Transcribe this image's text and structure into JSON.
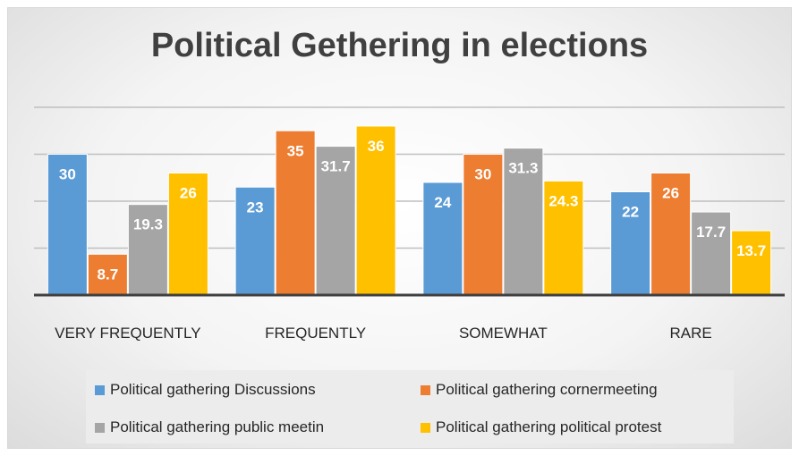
{
  "chart_data": {
    "type": "bar",
    "title": "Political Gethering in elections",
    "categories": [
      "VERY FREQUENTLY",
      "FREQUENTLY",
      "SOMEWHAT",
      "RARE"
    ],
    "series": [
      {
        "name": "Political gathering Discussions",
        "color": "#5b9bd5",
        "values": [
          30,
          23,
          24,
          22
        ],
        "labels": [
          "30",
          "23",
          "24",
          "22"
        ]
      },
      {
        "name": "Political gathering cornermeeting",
        "color": "#ed7d31",
        "values": [
          8.7,
          35,
          30,
          26
        ],
        "labels": [
          "8.7",
          "35",
          "30",
          "26"
        ]
      },
      {
        "name": "Political gathering public meetin",
        "color": "#a5a5a5",
        "values": [
          19.3,
          31.7,
          31.3,
          17.7
        ],
        "labels": [
          "19.3",
          "31.7",
          "31.3",
          "17.7"
        ]
      },
      {
        "name": "Political gathering political protest",
        "color": "#ffc000",
        "values": [
          26,
          36,
          24.3,
          13.7
        ],
        "labels": [
          "26",
          "36",
          "24.3",
          "13.7"
        ]
      }
    ],
    "ylim": [
      0,
      40
    ],
    "grid": true,
    "legend_position": "bottom",
    "xlabel": "",
    "ylabel": ""
  }
}
